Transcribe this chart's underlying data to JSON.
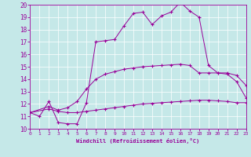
{
  "xlabel": "Windchill (Refroidissement éolien,°C)",
  "bg_color": "#c5e8e8",
  "line_color": "#990099",
  "xlim": [
    0,
    23
  ],
  "ylim": [
    10,
    20
  ],
  "yticks": [
    10,
    11,
    12,
    13,
    14,
    15,
    16,
    17,
    18,
    19,
    20
  ],
  "xticks": [
    0,
    1,
    2,
    3,
    4,
    5,
    6,
    7,
    8,
    9,
    10,
    11,
    12,
    13,
    14,
    15,
    16,
    17,
    18,
    19,
    20,
    21,
    22,
    23
  ],
  "line1_x": [
    0,
    1,
    2,
    3,
    4,
    5,
    6,
    7,
    8,
    9,
    10,
    11,
    12,
    13,
    14,
    15,
    16,
    17,
    18,
    19,
    20,
    21,
    22,
    23
  ],
  "line1_y": [
    11.3,
    11.0,
    12.2,
    10.5,
    10.4,
    10.4,
    12.1,
    17.0,
    17.1,
    17.2,
    18.3,
    19.3,
    19.4,
    18.4,
    19.1,
    19.4,
    20.2,
    19.5,
    19.0,
    15.1,
    14.5,
    14.4,
    13.8,
    12.5
  ],
  "line2_x": [
    0,
    2,
    3,
    4,
    5,
    6,
    7,
    8,
    9,
    10,
    11,
    12,
    13,
    14,
    15,
    16,
    17,
    18,
    19,
    20,
    21,
    22,
    23
  ],
  "line2_y": [
    11.3,
    11.8,
    11.5,
    11.7,
    12.2,
    13.2,
    14.0,
    14.4,
    14.6,
    14.8,
    14.9,
    15.0,
    15.05,
    15.1,
    15.15,
    15.2,
    15.1,
    14.5,
    14.5,
    14.5,
    14.5,
    14.3,
    13.5
  ],
  "line3_x": [
    0,
    2,
    3,
    4,
    5,
    6,
    7,
    8,
    9,
    10,
    11,
    12,
    13,
    14,
    15,
    16,
    17,
    18,
    19,
    20,
    21,
    22,
    23
  ],
  "line3_y": [
    11.3,
    11.6,
    11.4,
    11.3,
    11.3,
    11.4,
    11.5,
    11.6,
    11.7,
    11.8,
    11.9,
    12.0,
    12.05,
    12.1,
    12.15,
    12.2,
    12.25,
    12.3,
    12.3,
    12.25,
    12.2,
    12.1,
    12.1
  ]
}
